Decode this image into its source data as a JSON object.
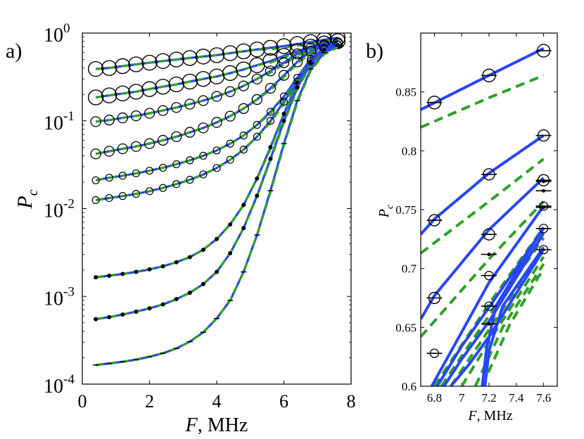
{
  "colors": {
    "model_solid": "#2746f5",
    "model_dashed": "#2ea126",
    "marker": "#000000"
  },
  "panels": [
    {
      "label": "a)"
    },
    {
      "label": "b)"
    }
  ],
  "chart_data": [
    {
      "type": "line",
      "panel": "a)",
      "xlabel": "F, MHz",
      "ylabel": "P_c",
      "yscale": "log",
      "xlim": [
        0,
        8
      ],
      "ylim": [
        0.0001,
        1
      ],
      "xticks": [
        "0",
        "2",
        "4",
        "6",
        "8"
      ],
      "yticks": [
        {
          "base": "10",
          "exp": "0"
        },
        {
          "base": "10",
          "exp": "-1"
        },
        {
          "base": "10",
          "exp": "-2"
        },
        {
          "base": "10",
          "exp": "-3"
        },
        {
          "base": "10",
          "exp": "-4"
        }
      ],
      "x": [
        0.4,
        0.8,
        1.2,
        1.6,
        2.0,
        2.4,
        2.8,
        3.2,
        3.6,
        4.0,
        4.4,
        4.8,
        5.2,
        5.6,
        6.0,
        6.4,
        6.8,
        7.2,
        7.6
      ],
      "series": [
        {
          "marker": "large-circle",
          "values": [
            0.39,
            0.4,
            0.42,
            0.44,
            0.46,
            0.48,
            0.5,
            0.52,
            0.54,
            0.56,
            0.59,
            0.62,
            0.65,
            0.68,
            0.71,
            0.75,
            0.79,
            0.84,
            0.885
          ]
        },
        {
          "marker": "large-circle",
          "values": [
            0.185,
            0.195,
            0.205,
            0.215,
            0.23,
            0.245,
            0.26,
            0.28,
            0.3,
            0.32,
            0.35,
            0.385,
            0.43,
            0.48,
            0.55,
            0.62,
            0.7,
            0.76,
            0.81
          ]
        },
        {
          "marker": "medium-circle",
          "values": [
            0.098,
            0.102,
            0.108,
            0.114,
            0.122,
            0.131,
            0.142,
            0.155,
            0.17,
            0.19,
            0.215,
            0.25,
            0.3,
            0.37,
            0.46,
            0.58,
            0.67,
            0.73,
            0.775
          ]
        },
        {
          "marker": "medium-circle",
          "values": [
            0.042,
            0.045,
            0.048,
            0.051,
            0.055,
            0.06,
            0.066,
            0.074,
            0.083,
            0.096,
            0.113,
            0.138,
            0.175,
            0.235,
            0.33,
            0.47,
            0.62,
            0.71,
            0.755
          ]
        },
        {
          "marker": "small-circle",
          "values": [
            0.021,
            0.0225,
            0.0237,
            0.0252,
            0.027,
            0.0292,
            0.032,
            0.0355,
            0.04,
            0.046,
            0.055,
            0.068,
            0.09,
            0.127,
            0.19,
            0.31,
            0.51,
            0.68,
            0.745
          ]
        },
        {
          "marker": "small-circle",
          "values": [
            0.0125,
            0.0132,
            0.0139,
            0.0147,
            0.0158,
            0.0172,
            0.019,
            0.0213,
            0.0245,
            0.029,
            0.036,
            0.047,
            0.066,
            0.1,
            0.165,
            0.28,
            0.48,
            0.66,
            0.735
          ]
        },
        {
          "marker": "dot",
          "values": [
            0.00165,
            0.00172,
            0.0018,
            0.0019,
            0.00203,
            0.0022,
            0.00245,
            0.0028,
            0.0034,
            0.0045,
            0.0066,
            0.011,
            0.022,
            0.05,
            0.12,
            0.27,
            0.47,
            0.64,
            0.73
          ]
        },
        {
          "marker": "dot",
          "values": [
            0.00055,
            0.00058,
            0.00062,
            0.00067,
            0.00073,
            0.00081,
            0.00093,
            0.0011,
            0.00138,
            0.0019,
            0.0031,
            0.006,
            0.014,
            0.037,
            0.1,
            0.24,
            0.45,
            0.63,
            0.72
          ]
        },
        {
          "marker": "bar",
          "values": [
            0.000165,
            0.000172,
            0.00018,
            0.00019,
            0.000205,
            0.000225,
            0.000255,
            0.000305,
            0.00039,
            0.00056,
            0.0009,
            0.0019,
            0.005,
            0.016,
            0.055,
            0.17,
            0.39,
            0.6,
            0.715
          ]
        }
      ]
    },
    {
      "type": "line",
      "panel": "b)",
      "xlabel": "F, MHz",
      "ylabel": "P_c",
      "xlim": [
        6.7,
        7.7
      ],
      "ylim": [
        0.6,
        0.9
      ],
      "xticks": [
        "6.8",
        "7",
        "7.2",
        "7.4",
        "7.6"
      ],
      "yticks": [
        "0.6",
        "0.65",
        "0.7",
        "0.75",
        "0.8",
        "0.85"
      ],
      "points": [
        {
          "x": 6.8,
          "y": 0.841,
          "marker": "large-circle"
        },
        {
          "x": 7.2,
          "y": 0.864,
          "marker": "large-circle"
        },
        {
          "x": 7.6,
          "y": 0.885,
          "marker": "large-circle"
        },
        {
          "x": 6.8,
          "y": 0.741,
          "marker": "medium-circle"
        },
        {
          "x": 7.2,
          "y": 0.78,
          "marker": "medium-circle"
        },
        {
          "x": 7.6,
          "y": 0.813,
          "marker": "medium-circle"
        },
        {
          "x": 6.8,
          "y": 0.675,
          "marker": "medium-circle"
        },
        {
          "x": 7.2,
          "y": 0.729,
          "marker": "medium-circle"
        },
        {
          "x": 7.6,
          "y": 0.775,
          "marker": "medium-circle"
        },
        {
          "x": 6.8,
          "y": 0.628,
          "marker": "small-circle"
        },
        {
          "x": 7.2,
          "y": 0.694,
          "marker": "small-circle"
        },
        {
          "x": 7.6,
          "y": 0.753,
          "marker": "small-circle"
        },
        {
          "x": 7.2,
          "y": 0.668,
          "marker": "small-circle"
        },
        {
          "x": 7.6,
          "y": 0.734,
          "marker": "small-circle"
        },
        {
          "x": 7.2,
          "y": 0.653,
          "marker": "dot"
        },
        {
          "x": 7.6,
          "y": 0.716,
          "marker": "small-circle"
        },
        {
          "x": 7.2,
          "y": 0.712,
          "marker": "dot"
        },
        {
          "x": 7.6,
          "y": 0.774,
          "marker": "dot"
        },
        {
          "x": 7.6,
          "y": 0.766,
          "marker": "dot"
        },
        {
          "x": 7.6,
          "y": 0.752,
          "marker": "dot"
        }
      ],
      "solid_lines": [
        {
          "x": [
            6.7,
            7.2,
            7.6
          ],
          "y": [
            0.835,
            0.864,
            0.887
          ]
        },
        {
          "x": [
            6.7,
            6.8,
            7.2,
            7.6
          ],
          "y": [
            0.729,
            0.742,
            0.781,
            0.813
          ]
        },
        {
          "x": [
            6.7,
            6.8,
            7.2,
            7.6
          ],
          "y": [
            0.657,
            0.677,
            0.733,
            0.777
          ]
        },
        {
          "x": [
            6.78,
            7.0,
            7.2,
            7.6
          ],
          "y": [
            0.6,
            0.646,
            0.688,
            0.753
          ]
        },
        {
          "x": [
            6.82,
            7.0,
            7.2,
            7.6
          ],
          "y": [
            0.6,
            0.634,
            0.667,
            0.734
          ]
        },
        {
          "x": [
            6.87,
            7.0,
            7.2,
            7.6
          ],
          "y": [
            0.6,
            0.623,
            0.655,
            0.73
          ]
        },
        {
          "x": [
            6.92,
            7.05,
            7.2,
            7.6
          ],
          "y": [
            0.6,
            0.618,
            0.642,
            0.716
          ]
        },
        {
          "x": [
            7.15,
            7.18,
            7.25,
            7.6
          ],
          "y": [
            0.6,
            0.63,
            0.668,
            0.735
          ]
        },
        {
          "x": [
            7.17,
            7.2,
            7.3,
            7.6
          ],
          "y": [
            0.6,
            0.63,
            0.668,
            0.718
          ]
        }
      ],
      "dashed_lines": [
        {
          "x": [
            6.7,
            7.2,
            7.6
          ],
          "y": [
            0.82,
            0.845,
            0.864
          ]
        },
        {
          "x": [
            6.7,
            7.2,
            7.6
          ],
          "y": [
            0.713,
            0.757,
            0.793
          ]
        },
        {
          "x": [
            6.7,
            7.2,
            7.6
          ],
          "y": [
            0.642,
            0.708,
            0.757
          ]
        },
        {
          "x": [
            6.8,
            7.2,
            7.6
          ],
          "y": [
            0.6,
            0.67,
            0.735
          ]
        },
        {
          "x": [
            6.85,
            7.2,
            7.6
          ],
          "y": [
            0.6,
            0.66,
            0.726
          ]
        },
        {
          "x": [
            6.92,
            7.2,
            7.6
          ],
          "y": [
            0.6,
            0.648,
            0.718
          ]
        },
        {
          "x": [
            7.0,
            7.2,
            7.6
          ],
          "y": [
            0.6,
            0.638,
            0.71
          ]
        },
        {
          "x": [
            7.1,
            7.3,
            7.6
          ],
          "y": [
            0.6,
            0.65,
            0.704
          ]
        },
        {
          "x": [
            7.15,
            7.35,
            7.6
          ],
          "y": [
            0.6,
            0.652,
            0.7
          ]
        }
      ]
    }
  ]
}
